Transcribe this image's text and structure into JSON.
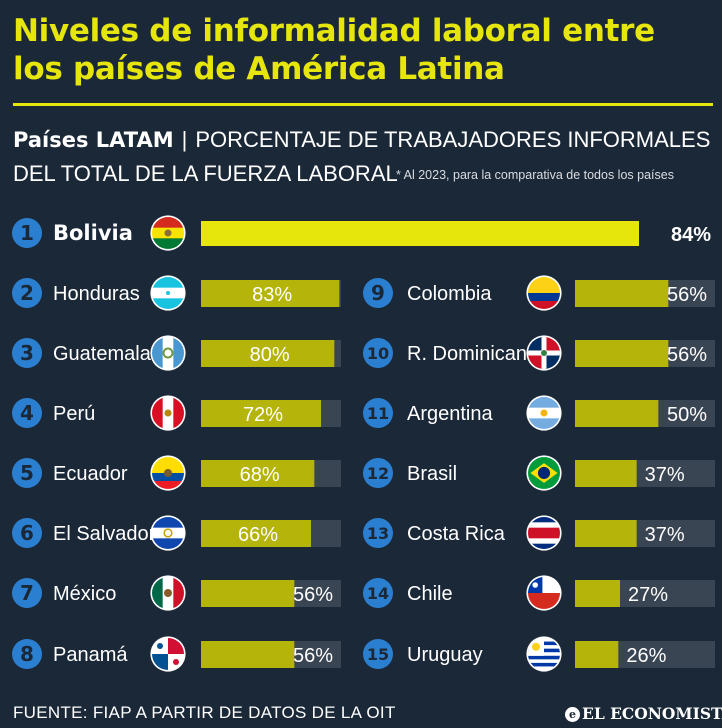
{
  "title": "Niveles de informalidad laboral entre los países de América Latina",
  "subtitle": {
    "bold": "Países LATAM",
    "separator": "|",
    "rest_line1": "PORCENTAJE DE TRABAJADORES INFORMALES",
    "rest_line2": "DEL TOTAL DE LA FUERZA LABORAL",
    "note": "* Al 2023, para la comparativa de todos los países"
  },
  "footer": {
    "source": "FUENTE: FIAP A PARTIR DE DATOS DE LA OIT",
    "brand": "EL ECONOMISTA",
    "brand_mark": "e"
  },
  "colors": {
    "background": "#1b2838",
    "accent": "#e6e60c",
    "bar": "#b4b40a",
    "track": "#3a4553",
    "badge": "#2b7fd0"
  },
  "chart_data": {
    "type": "bar",
    "orientation": "horizontal",
    "value_max": 84,
    "categories": [
      "Bolivia",
      "Honduras",
      "Guatemala",
      "Perú",
      "Ecuador",
      "El Salvador",
      "México",
      "Panamá",
      "Colombia",
      "R. Dominicana",
      "Argentina",
      "Brasil",
      "Costa Rica",
      "Chile",
      "Uruguay"
    ],
    "ranks": [
      "1",
      "2",
      "3",
      "4",
      "5",
      "6",
      "7",
      "8",
      "9",
      "10",
      "11",
      "12",
      "13",
      "14",
      "15"
    ],
    "values": [
      84,
      83,
      80,
      72,
      68,
      66,
      56,
      56,
      56,
      56,
      50,
      37,
      37,
      27,
      26
    ],
    "value_labels": [
      "84%",
      "83%",
      "80%",
      "72%",
      "68%",
      "66%",
      "56%",
      "56%",
      "56%",
      "56%",
      "50%",
      "37%",
      "37%",
      "27%",
      "26%"
    ],
    "flags": [
      "bolivia-flag",
      "honduras-flag",
      "guatemala-flag",
      "peru-flag",
      "ecuador-flag",
      "el-salvador-flag",
      "mexico-flag",
      "panama-flag",
      "colombia-flag",
      "dominican-republic-flag",
      "argentina-flag",
      "brazil-flag",
      "costa-rica-flag",
      "chile-flag",
      "uruguay-flag"
    ]
  }
}
